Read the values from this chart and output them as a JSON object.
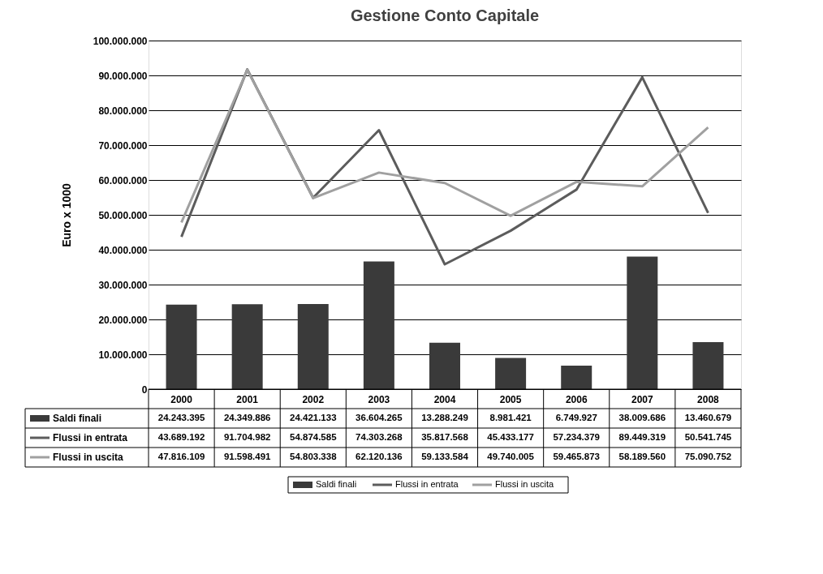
{
  "chart_data": {
    "type": "bar",
    "title": "Gestione Conto Capitale",
    "ylabel": "Euro x 1000",
    "categories": [
      "2000",
      "2001",
      "2002",
      "2003",
      "2004",
      "2005",
      "2006",
      "2007",
      "2008"
    ],
    "series": [
      {
        "name": "Saldi finali",
        "color": "#3a3a3a",
        "values": [
          24243395,
          24349886,
          24421133,
          36604265,
          13288249,
          8981421,
          6749927,
          38009686,
          13460679
        ],
        "value_labels": [
          "24.243.395",
          "24.349.886",
          "24.421.133",
          "36.604.265",
          "13.288.249",
          "8.981.421",
          "6.749.927",
          "38.009.686",
          "13.460.679"
        ]
      },
      {
        "name": "Flussi in entrata",
        "type": "line",
        "color": "#5c5c5c",
        "values": [
          43689192,
          91704982,
          54874585,
          74303268,
          35817568,
          45433177,
          57234379,
          89449319,
          50541745
        ],
        "value_labels": [
          "43.689.192",
          "91.704.982",
          "54.874.585",
          "74.303.268",
          "35.817.568",
          "45.433.177",
          "57.234.379",
          "89.449.319",
          "50.541.745"
        ]
      },
      {
        "name": "Flussi in uscita",
        "type": "line",
        "color": "#a0a0a0",
        "values": [
          47816109,
          91598491,
          54803338,
          62120136,
          59133584,
          49740005,
          59465873,
          58189560,
          75090752
        ],
        "value_labels": [
          "47.816.109",
          "91.598.491",
          "54.803.338",
          "62.120.136",
          "59.133.584",
          "49.740.005",
          "59.465.873",
          "58.189.560",
          "75.090.752"
        ]
      }
    ],
    "ylim": [
      0,
      100000000
    ],
    "yticks": [
      0,
      {
        "value": 10000000,
        "label": "10.000.000"
      },
      {
        "value": 20000000,
        "label": "20.000.000"
      },
      {
        "value": 30000000,
        "label": "30.000.000"
      },
      {
        "value": 40000000,
        "label": "40.000.000"
      },
      {
        "value": 50000000,
        "label": "50.000.000"
      },
      {
        "value": 60000000,
        "label": "60.000.000"
      },
      {
        "value": 70000000,
        "label": "70.000.000"
      },
      {
        "value": 80000000,
        "label": "80.000.000"
      },
      {
        "value": 90000000,
        "label": "90.000.000"
      },
      {
        "value": 100000000,
        "label": "100.000.000"
      }
    ],
    "grid": "y",
    "legend": "bottom"
  }
}
